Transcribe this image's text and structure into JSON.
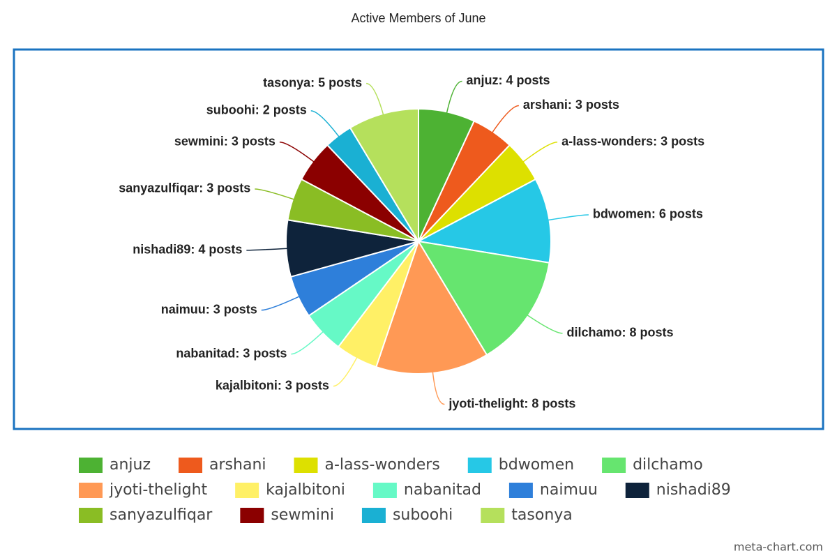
{
  "chart_data": {
    "type": "pie",
    "title": "Active Members of June",
    "categories": [
      "anjuz",
      "arshani",
      "a-lass-wonders",
      "bdwomen",
      "dilchamo",
      "jyoti-thelight",
      "kajalbitoni",
      "nabanitad",
      "naimuu",
      "nishadi89",
      "sanyazulfiqar",
      "sewmini",
      "suboohi",
      "tasonya"
    ],
    "values": [
      4,
      3,
      3,
      6,
      8,
      8,
      3,
      3,
      3,
      4,
      3,
      3,
      2,
      5
    ],
    "value_labels": [
      "anjuz: 4 posts",
      "arshani: 3 posts",
      "a-lass-wonders: 3 posts",
      "bdwomen: 6 posts",
      "dilchamo: 8 posts",
      "jyoti-thelight: 8 posts",
      "kajalbitoni: 3 posts",
      "nabanitad: 3 posts",
      "naimuu: 3 posts",
      "nishadi89: 4 posts",
      "sanyazulfiqar: 3 posts",
      "sewmini: 3 posts",
      "suboohi: 2 posts",
      "tasonya: 5 posts"
    ],
    "colors": [
      "#4db233",
      "#ee5a1d",
      "#dde000",
      "#26c8e6",
      "#66e56f",
      "#ff9955",
      "#fff066",
      "#66f9c6",
      "#2e7fda",
      "#0e233b",
      "#8abd24",
      "#8b0000",
      "#1ab0d3",
      "#b5e05c"
    ],
    "credit": "meta-chart.com"
  }
}
